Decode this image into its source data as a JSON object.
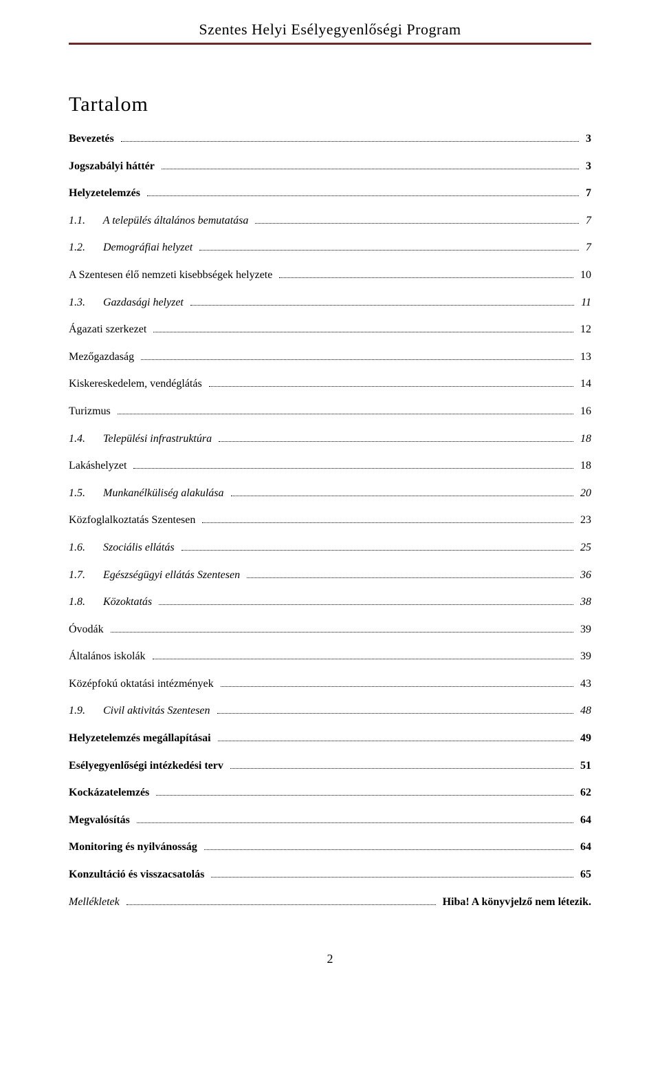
{
  "header": {
    "title": "Szentes Helyi Esélyegyenlőségi Program",
    "border_color": "#6a2a2a",
    "title_fontsize": 22
  },
  "heading": {
    "text": "Tartalom",
    "fontsize": 30
  },
  "toc": {
    "fontsize": 16,
    "leader_color": "#000000",
    "entries": [
      {
        "label": "Bevezetés",
        "page": "3",
        "bold": true,
        "italic": false,
        "num": ""
      },
      {
        "label": "Jogszabályi háttér",
        "page": "3",
        "bold": true,
        "italic": false,
        "num": ""
      },
      {
        "label": "Helyzetelemzés",
        "page": "7",
        "bold": true,
        "italic": false,
        "num": ""
      },
      {
        "label": "A település általános bemutatása",
        "page": "7",
        "bold": false,
        "italic": true,
        "num": "1.1."
      },
      {
        "label": "Demográfiai helyzet",
        "page": "7",
        "bold": false,
        "italic": true,
        "num": "1.2."
      },
      {
        "label": "A Szentesen élő nemzeti kisebbségek helyzete",
        "page": "10",
        "bold": false,
        "italic": false,
        "num": ""
      },
      {
        "label": "Gazdasági helyzet",
        "page": "11",
        "bold": false,
        "italic": true,
        "num": "1.3."
      },
      {
        "label": "Ágazati szerkezet",
        "page": "12",
        "bold": false,
        "italic": false,
        "num": ""
      },
      {
        "label": "Mezőgazdaság",
        "page": "13",
        "bold": false,
        "italic": false,
        "num": ""
      },
      {
        "label": "Kiskereskedelem, vendéglátás",
        "page": "14",
        "bold": false,
        "italic": false,
        "num": ""
      },
      {
        "label": "Turizmus",
        "page": "16",
        "bold": false,
        "italic": false,
        "num": ""
      },
      {
        "label": "Települési infrastruktúra",
        "page": "18",
        "bold": false,
        "italic": true,
        "num": "1.4."
      },
      {
        "label": "Lakáshelyzet",
        "page": "18",
        "bold": false,
        "italic": false,
        "num": ""
      },
      {
        "label": "Munkanélküliség alakulása",
        "page": "20",
        "bold": false,
        "italic": true,
        "num": "1.5."
      },
      {
        "label": "Közfoglalkoztatás Szentesen",
        "page": "23",
        "bold": false,
        "italic": false,
        "num": ""
      },
      {
        "label": "Szociális ellátás",
        "page": "25",
        "bold": false,
        "italic": true,
        "num": "1.6."
      },
      {
        "label": "Egészségügyi ellátás Szentesen",
        "page": "36",
        "bold": false,
        "italic": true,
        "num": "1.7."
      },
      {
        "label": "Közoktatás",
        "page": "38",
        "bold": false,
        "italic": true,
        "num": "1.8."
      },
      {
        "label": "Óvodák",
        "page": "39",
        "bold": false,
        "italic": false,
        "num": ""
      },
      {
        "label": "Általános iskolák",
        "page": "39",
        "bold": false,
        "italic": false,
        "num": ""
      },
      {
        "label": "Középfokú oktatási intézmények",
        "page": "43",
        "bold": false,
        "italic": false,
        "num": ""
      },
      {
        "label": "Civil aktivitás Szentesen",
        "page": "48",
        "bold": false,
        "italic": true,
        "num": "1.9."
      },
      {
        "label": "Helyzetelemzés megállapításai",
        "page": "49",
        "bold": true,
        "italic": false,
        "num": ""
      },
      {
        "label": "Esélyegyenlőségi intézkedési terv",
        "page": "51",
        "bold": true,
        "italic": false,
        "num": ""
      },
      {
        "label": "Kockázatelemzés",
        "page": "62",
        "bold": true,
        "italic": false,
        "num": ""
      },
      {
        "label": "Megvalósítás",
        "page": "64",
        "bold": true,
        "italic": false,
        "num": ""
      },
      {
        "label": "Monitoring és nyilvánosság",
        "page": "64",
        "bold": true,
        "italic": false,
        "num": ""
      },
      {
        "label": "Konzultáció és visszacsatolás",
        "page": "65",
        "bold": true,
        "italic": false,
        "num": ""
      },
      {
        "label": "Mellékletek",
        "page": "Hiba! A könyvjelző nem létezik.",
        "bold": false,
        "italic": true,
        "num": "",
        "page_bold": true,
        "page_italic": false
      }
    ]
  },
  "footer": {
    "page_number": "2"
  },
  "colors": {
    "background": "#ffffff",
    "text": "#000000"
  }
}
